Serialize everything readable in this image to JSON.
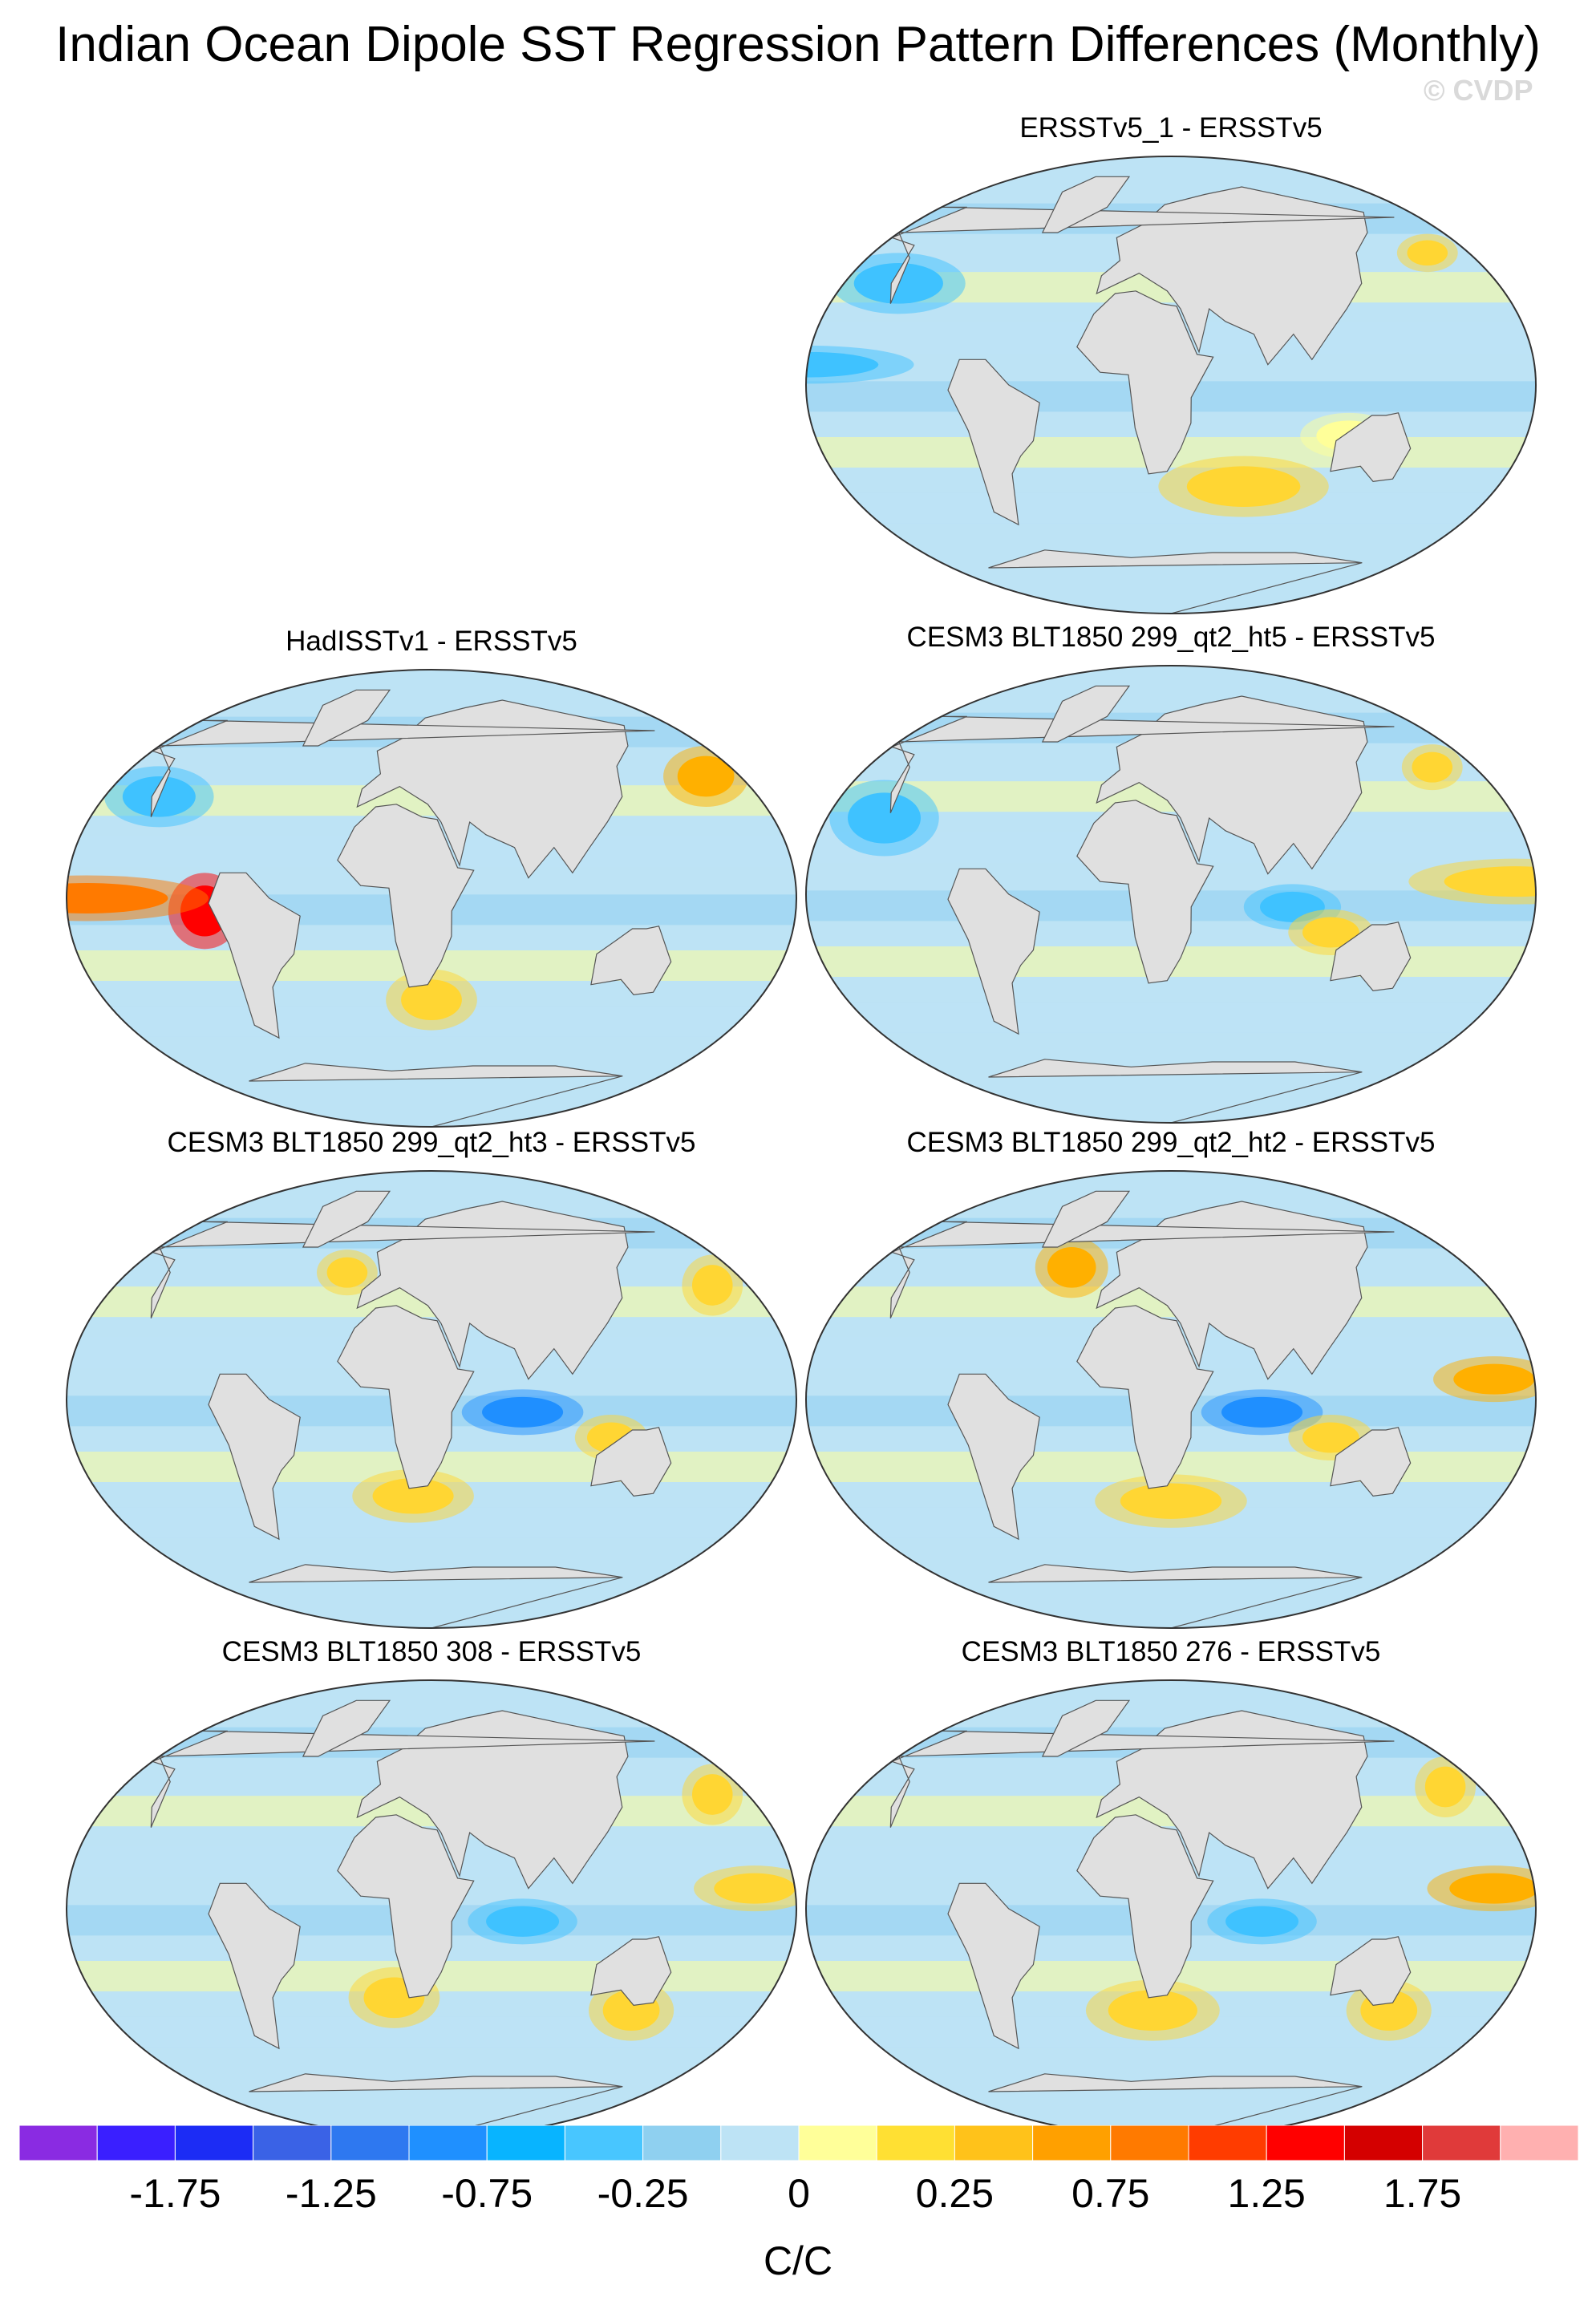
{
  "title": "Indian Ocean Dipole SST Regression Pattern Differences (Monthly)",
  "watermark": "© CVDP",
  "panels": [
    {
      "title": "ERSSTv5_1 - ERSSTv5",
      "hotspots": [
        {
          "lon": -175,
          "lat": 52,
          "rx": 10,
          "ry": 5,
          "c": "#ffd633"
        },
        {
          "lon": 70,
          "lat": -40,
          "rx": 28,
          "ry": 8,
          "c": "#ffd633"
        },
        {
          "lon": 120,
          "lat": -20,
          "rx": 16,
          "ry": 6,
          "c": "#ffff99"
        },
        {
          "lon": -120,
          "lat": 40,
          "rx": 22,
          "ry": 8,
          "c": "#3fc2ff"
        },
        {
          "lon": -150,
          "lat": 8,
          "rx": 35,
          "ry": 5,
          "c": "#3fc2ff"
        }
      ]
    },
    {
      "title": "HadISSTv1 - ERSSTv5",
      "hotspots": [
        {
          "lon": -82,
          "lat": -5,
          "rx": 12,
          "ry": 10,
          "c": "#ff0000"
        },
        {
          "lon": -140,
          "lat": 0,
          "rx": 40,
          "ry": 6,
          "c": "#ff7a00"
        },
        {
          "lon": -170,
          "lat": 48,
          "rx": 14,
          "ry": 8,
          "c": "#ffb000"
        },
        {
          "lon": 30,
          "lat": -40,
          "rx": 15,
          "ry": 8,
          "c": "#ffd633"
        },
        {
          "lon": -120,
          "lat": 40,
          "rx": 18,
          "ry": 8,
          "c": "#3fc2ff"
        }
      ]
    },
    {
      "title": "CESM3 BLT1850 299_qt2_ht5 - ERSSTv5",
      "hotspots": [
        {
          "lon": 90,
          "lat": -5,
          "rx": 16,
          "ry": 6,
          "c": "#3fc2ff"
        },
        {
          "lon": 110,
          "lat": -15,
          "rx": 14,
          "ry": 6,
          "c": "#ffd633"
        },
        {
          "lon": -160,
          "lat": 5,
          "rx": 35,
          "ry": 6,
          "c": "#ffd633"
        },
        {
          "lon": -175,
          "lat": 50,
          "rx": 10,
          "ry": 6,
          "c": "#ffd633"
        },
        {
          "lon": -120,
          "lat": 30,
          "rx": 18,
          "ry": 10,
          "c": "#3fc2ff"
        }
      ]
    },
    {
      "title": "CESM3 BLT1850 299_qt2_ht3 - ERSSTv5",
      "hotspots": [
        {
          "lon": 75,
          "lat": -5,
          "rx": 20,
          "ry": 6,
          "c": "#1f8fff"
        },
        {
          "lon": 120,
          "lat": -15,
          "rx": 12,
          "ry": 6,
          "c": "#ffd633"
        },
        {
          "lon": -170,
          "lat": 45,
          "rx": 10,
          "ry": 8,
          "c": "#ffd633"
        },
        {
          "lon": 20,
          "lat": -38,
          "rx": 20,
          "ry": 7,
          "c": "#ffd633"
        },
        {
          "lon": -20,
          "lat": 50,
          "rx": 10,
          "ry": 6,
          "c": "#ffd633"
        }
      ]
    },
    {
      "title": "CESM3 BLT1850 299_qt2_ht2 - ERSSTv5",
      "hotspots": [
        {
          "lon": 75,
          "lat": -5,
          "rx": 20,
          "ry": 6,
          "c": "#1f8fff"
        },
        {
          "lon": 110,
          "lat": -15,
          "rx": 14,
          "ry": 6,
          "c": "#ffd633"
        },
        {
          "lon": -170,
          "lat": 8,
          "rx": 20,
          "ry": 6,
          "c": "#ffb000"
        },
        {
          "lon": -30,
          "lat": 52,
          "rx": 12,
          "ry": 8,
          "c": "#ffb000"
        },
        {
          "lon": 30,
          "lat": -40,
          "rx": 25,
          "ry": 7,
          "c": "#ffd633"
        }
      ]
    },
    {
      "title": "CESM3 BLT1850 308 - ERSSTv5",
      "hotspots": [
        {
          "lon": 75,
          "lat": -5,
          "rx": 18,
          "ry": 6,
          "c": "#3fc2ff"
        },
        {
          "lon": -170,
          "lat": 8,
          "rx": 20,
          "ry": 6,
          "c": "#ffd633"
        },
        {
          "lon": -170,
          "lat": 45,
          "rx": 10,
          "ry": 8,
          "c": "#ffd633"
        },
        {
          "lon": 10,
          "lat": -35,
          "rx": 15,
          "ry": 8,
          "c": "#ffd633"
        },
        {
          "lon": 140,
          "lat": -40,
          "rx": 14,
          "ry": 8,
          "c": "#ffd633"
        }
      ]
    },
    {
      "title": "CESM3 BLT1850 276 - ERSSTv5",
      "hotspots": [
        {
          "lon": 75,
          "lat": -5,
          "rx": 18,
          "ry": 6,
          "c": "#3fc2ff"
        },
        {
          "lon": -170,
          "lat": 8,
          "rx": 22,
          "ry": 6,
          "c": "#ffb000"
        },
        {
          "lon": -170,
          "lat": 48,
          "rx": 10,
          "ry": 8,
          "c": "#ffd633"
        },
        {
          "lon": 20,
          "lat": -40,
          "rx": 22,
          "ry": 8,
          "c": "#ffd633"
        },
        {
          "lon": 150,
          "lat": -40,
          "rx": 14,
          "ry": 8,
          "c": "#ffd633"
        }
      ]
    }
  ],
  "colorbar": {
    "units": "C/C",
    "colors": [
      "#8a2be2",
      "#3a1fff",
      "#1c2cf5",
      "#3a62e6",
      "#2e78f0",
      "#1f90ff",
      "#08b4ff",
      "#48c6ff",
      "#8fd0f0",
      "#bde3f5",
      "#ffff99",
      "#ffe033",
      "#ffc21a",
      "#ffa000",
      "#ff7a00",
      "#ff3c00",
      "#ff0000",
      "#d40000",
      "#e03a3a",
      "#ffb0b0"
    ],
    "tick_values": [
      "-1.75",
      "-1.25",
      "-0.75",
      "-0.25",
      "0",
      "0.25",
      "0.75",
      "1.25",
      "1.75"
    ],
    "tick_boundaries": [
      2,
      4,
      6,
      8,
      10,
      12,
      14,
      16,
      18
    ]
  }
}
